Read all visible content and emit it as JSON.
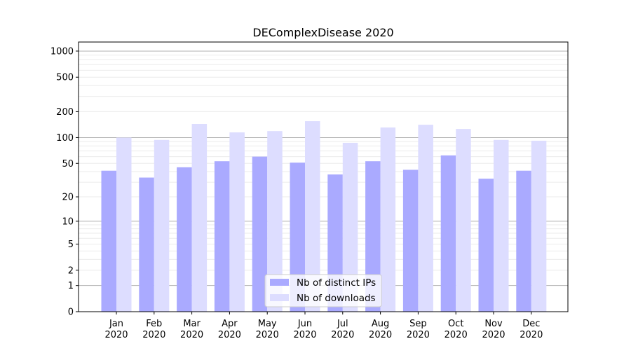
{
  "chart_data": {
    "type": "bar",
    "title": "DEComplexDisease 2020",
    "xlabel": "",
    "ylabel": "",
    "yscale": "log(1+y)",
    "ylim": [
      0,
      1200
    ],
    "yticks": [
      0,
      1,
      2,
      5,
      10,
      20,
      50,
      100,
      200,
      500,
      1000
    ],
    "grid": true,
    "legend_position": "bottom-center",
    "categories": [
      "Jan\n2020",
      "Feb\n2020",
      "Mar\n2020",
      "Apr\n2020",
      "May\n2020",
      "Jun\n2020",
      "Jul\n2020",
      "Aug\n2020",
      "Sep\n2020",
      "Oct\n2020",
      "Nov\n2020",
      "Dec\n2020"
    ],
    "series": [
      {
        "name": "Nb of distinct IPs",
        "color": "#aaaaff",
        "values": [
          41,
          34,
          45,
          53,
          60,
          51,
          37,
          53,
          42,
          62,
          33,
          41
        ]
      },
      {
        "name": "Nb of downloads",
        "color": "#ddddff",
        "values": [
          100,
          94,
          144,
          115,
          119,
          155,
          87,
          131,
          141,
          126,
          94,
          92
        ]
      }
    ]
  }
}
